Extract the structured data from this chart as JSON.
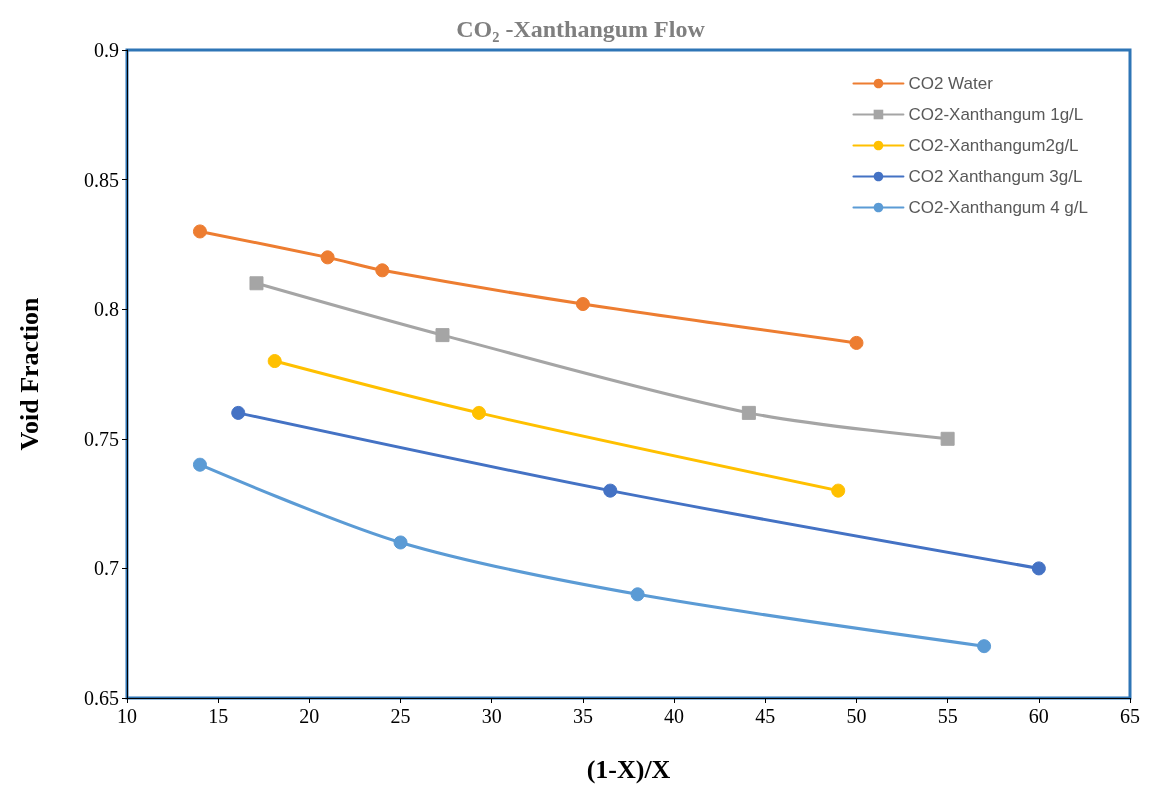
{
  "chart_data": {
    "type": "line",
    "title": "CO₂ -Xanthangum Flow",
    "xlabel": "(1-X)/X",
    "ylabel": "Void Fraction",
    "xlim": [
      10,
      65
    ],
    "xticks": [
      10,
      15,
      20,
      25,
      30,
      35,
      40,
      45,
      50,
      55,
      60,
      65
    ],
    "ylim": [
      0.65,
      0.9
    ],
    "yticks": [
      0.65,
      0.7,
      0.75,
      0.8,
      0.85,
      0.9
    ],
    "grid": false,
    "legend": "top right",
    "series": [
      {
        "name": "CO2 Water",
        "color": "#ed7d31",
        "marker": "circle",
        "x": [
          14,
          21,
          24,
          35,
          50
        ],
        "values": [
          0.83,
          0.82,
          0.815,
          0.802,
          0.787
        ]
      },
      {
        "name": "CO2-Xanthangum 1g/L",
        "color": "#a5a5a5",
        "marker": "square",
        "x": [
          17.1,
          27.3,
          44.1,
          55
        ],
        "values": [
          0.81,
          0.79,
          0.76,
          0.75
        ]
      },
      {
        "name": "CO2-Xanthangum2g/L",
        "color": "#ffc000",
        "marker": "circle",
        "x": [
          18.1,
          29.3,
          49
        ],
        "values": [
          0.78,
          0.76,
          0.73
        ]
      },
      {
        "name": "CO2 Xanthangum 3g/L",
        "color": "#4472c4",
        "marker": "circle",
        "x": [
          16.1,
          36.5,
          60
        ],
        "values": [
          0.76,
          0.73,
          0.7
        ]
      },
      {
        "name": "CO2-Xanthangum 4 g/L",
        "color": "#5b9bd5",
        "marker": "circle",
        "x": [
          14,
          25,
          38,
          57
        ],
        "values": [
          0.74,
          0.71,
          0.69,
          0.67
        ]
      }
    ]
  }
}
